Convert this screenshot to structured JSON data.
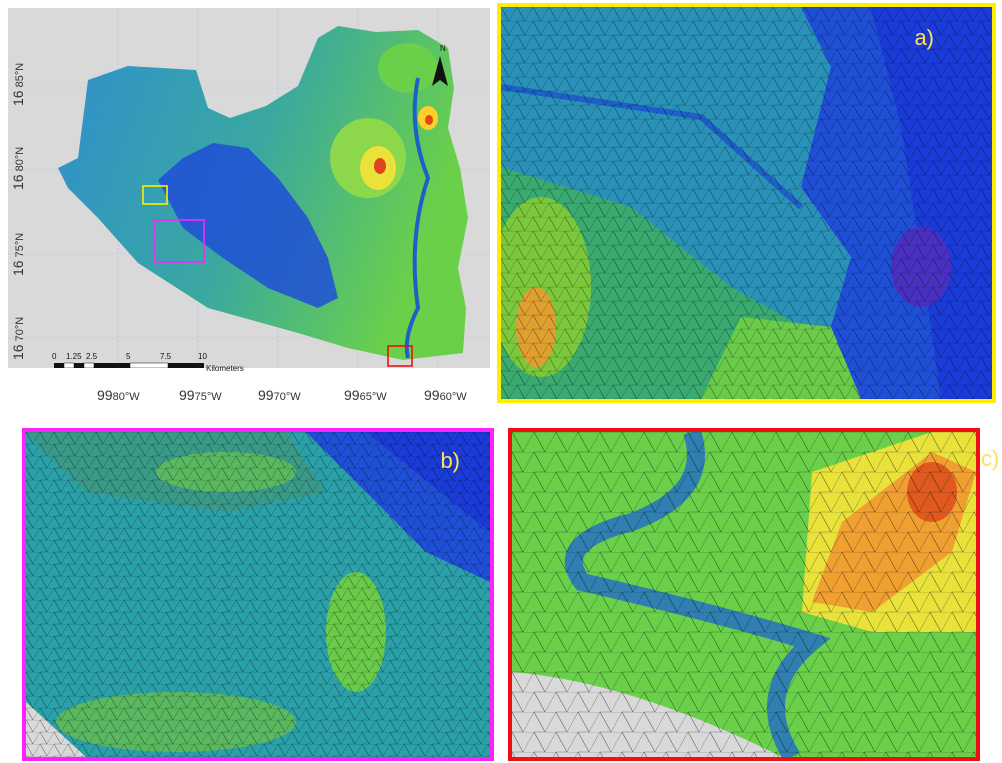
{
  "main_map": {
    "lat_labels": [
      {
        "deg": "16",
        "min": "85°N"
      },
      {
        "deg": "16",
        "min": "80°N"
      },
      {
        "deg": "16",
        "min": "75°N"
      },
      {
        "deg": "16",
        "min": "70°N"
      }
    ],
    "lon_labels": [
      {
        "deg": "99",
        "min": "80°W"
      },
      {
        "deg": "99",
        "min": "75°W"
      },
      {
        "deg": "99",
        "min": "70°W"
      },
      {
        "deg": "99",
        "min": "65°W"
      },
      {
        "deg": "99",
        "min": "60°W"
      }
    ],
    "north_label": "N",
    "scale_labels": [
      "0",
      "1.25",
      "2.5",
      "5",
      "7.5",
      "10"
    ],
    "scale_unit": "Kilometers",
    "inset_boxes": [
      {
        "ref": "a",
        "color": "#ffee00"
      },
      {
        "ref": "b",
        "color": "#ff22ff"
      },
      {
        "ref": "c",
        "color": "#ee1111"
      }
    ]
  },
  "insets": {
    "a": {
      "label": "a)",
      "frame_color": "#ffee00"
    },
    "b": {
      "label": "b)",
      "frame_color": "#ff22ff"
    },
    "c": {
      "label": "c)",
      "frame_color": "#ee1111"
    }
  },
  "colors": {
    "background": "#d9d9d9",
    "deep_water": "#1f4fd6",
    "shallow_water": "#1e78c8",
    "lowland": "#2f9ad0",
    "vegetation": "#3cc86a",
    "upland": "#a8e03c",
    "high": "#ffd02a",
    "peak": "#e0451f",
    "mesh": "#000000"
  }
}
